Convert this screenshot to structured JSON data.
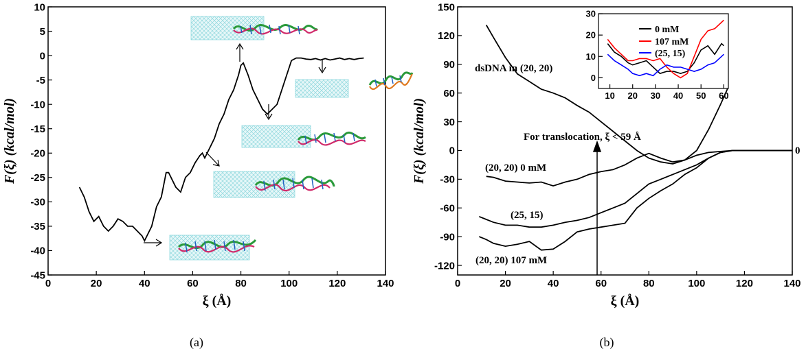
{
  "chart_data": [
    {
      "type": "line",
      "panel_label": "(a)",
      "xlabel": "ξ (Å)",
      "ylabel": "F(ξ) (kcal/mol)",
      "xlim": [
        0,
        140
      ],
      "ylim": [
        -45,
        10
      ],
      "xticks": [
        0,
        20,
        40,
        60,
        80,
        100,
        120,
        140
      ],
      "yticks": [
        10,
        5,
        0,
        -5,
        -10,
        -15,
        -20,
        -25,
        -30,
        -35,
        -40,
        -45
      ],
      "series": [
        {
          "color": "#000000",
          "x": [
            13,
            15,
            17,
            19,
            21,
            23,
            25,
            27,
            29,
            31,
            33,
            35,
            37,
            39,
            40,
            41,
            43,
            45,
            47,
            49,
            50,
            51,
            53,
            55,
            57,
            59,
            61,
            63,
            64,
            65,
            67,
            69,
            71,
            73,
            75,
            77,
            79,
            80,
            81,
            83,
            85,
            87,
            89,
            91,
            93,
            95,
            97,
            99,
            101,
            103,
            105,
            107,
            109,
            111,
            113,
            115,
            117,
            119,
            121,
            123,
            125,
            127,
            129,
            131
          ],
          "y": [
            -27,
            -29,
            -32,
            -34,
            -33,
            -35,
            -36,
            -35,
            -33.5,
            -34,
            -35,
            -35,
            -36,
            -37,
            -38,
            -37,
            -35,
            -31,
            -29,
            -24,
            -24,
            -25,
            -27,
            -28,
            -25,
            -24,
            -22,
            -20.5,
            -20,
            -21,
            -19,
            -17,
            -14,
            -12,
            -9,
            -7,
            -4,
            -2,
            -1.5,
            -4,
            -7,
            -9,
            -11,
            -12,
            -11,
            -10,
            -7,
            -4,
            -1,
            -0.5,
            -0.5,
            -0.7,
            -0.8,
            -0.6,
            -0.9,
            -0.6,
            -0.9,
            -0.7,
            -0.5,
            -0.8,
            -0.6,
            -0.8,
            -0.6,
            -0.5
          ]
        }
      ],
      "insets": [
        {
          "image": "dsDNA-nanotube-snapshot-1"
        },
        {
          "image": "dsDNA-nanotube-snapshot-2"
        },
        {
          "image": "dsDNA-nanotube-snapshot-3"
        },
        {
          "image": "dsDNA-nanotube-snapshot-4"
        },
        {
          "image": "dsDNA-nanotube-snapshot-5"
        },
        {
          "image": "dsDNA-free-snapshot"
        }
      ]
    },
    {
      "type": "line",
      "panel_label": "(b)",
      "xlabel": "ξ (Å)",
      "ylabel": "F(ξ) (kcal/mol)",
      "xlim": [
        0,
        140
      ],
      "ylim": [
        -130,
        150
      ],
      "xticks": [
        0,
        20,
        40,
        60,
        80,
        100,
        120,
        140
      ],
      "yticks": [
        150,
        120,
        90,
        60,
        30,
        0,
        -30,
        -60,
        -90,
        -120
      ],
      "annotations": {
        "dsdna": "dsDNA in (20, 20)",
        "translocation": "For translocation, ξ < 59 Å",
        "zero": "0",
        "lab_0mM": "(20, 20) 0 mM",
        "lab_2515": "(25, 15)",
        "lab_107mM": "(20, 20) 107 mM"
      },
      "series": [
        {
          "label": "dsDNA in (20, 20)",
          "color": "#000000",
          "x": [
            12,
            15,
            20,
            25,
            30,
            35,
            40,
            45,
            50,
            55,
            60,
            65,
            70,
            75,
            80,
            85,
            90,
            95,
            100,
            105,
            110,
            113
          ],
          "y": [
            131,
            118,
            97,
            80,
            72,
            64,
            60,
            55,
            47,
            40,
            30,
            20,
            10,
            0,
            -8,
            -12,
            -14,
            -10,
            0,
            22,
            48,
            65
          ]
        },
        {
          "label": "(20, 20) 0 mM",
          "color": "#000000",
          "x": [
            12,
            15,
            20,
            25,
            30,
            35,
            40,
            45,
            50,
            55,
            60,
            65,
            70,
            75,
            80,
            85,
            90,
            95,
            100,
            105,
            110,
            115,
            120,
            125,
            130,
            140
          ],
          "y": [
            -27,
            -28,
            -32,
            -33,
            -34,
            -33,
            -37,
            -33,
            -30,
            -25,
            -22,
            -20,
            -15,
            -8,
            -3,
            -8,
            -12,
            -10,
            -5,
            -2,
            -1,
            0,
            0,
            0,
            0,
            0
          ]
        },
        {
          "label": "(25, 15)",
          "color": "#000000",
          "x": [
            9,
            12,
            15,
            20,
            25,
            30,
            35,
            40,
            45,
            50,
            55,
            60,
            65,
            70,
            75,
            80,
            85,
            90,
            95,
            100,
            105,
            110,
            115,
            120,
            130,
            140
          ],
          "y": [
            -69,
            -72,
            -75,
            -78,
            -78,
            -80,
            -80,
            -78,
            -75,
            -73,
            -70,
            -65,
            -60,
            -55,
            -45,
            -35,
            -30,
            -25,
            -20,
            -15,
            -8,
            -2,
            0,
            0,
            0,
            0
          ]
        },
        {
          "label": "(20, 20) 107 mM",
          "color": "#000000",
          "x": [
            9,
            12,
            15,
            20,
            25,
            30,
            35,
            40,
            45,
            50,
            55,
            60,
            65,
            70,
            75,
            80,
            85,
            90,
            95,
            100,
            105,
            110,
            115,
            120,
            130,
            140
          ],
          "y": [
            -90,
            -93,
            -97,
            -100,
            -98,
            -95,
            -104,
            -103,
            -95,
            -85,
            -82,
            -80,
            -78,
            -76,
            -60,
            -50,
            -42,
            -35,
            -25,
            -18,
            -8,
            -2,
            0,
            0,
            0,
            0
          ]
        }
      ],
      "inset_chart": {
        "xlim": [
          5,
          62
        ],
        "ylim": [
          -5,
          30
        ],
        "xticks": [
          10,
          20,
          30,
          40,
          50,
          60
        ],
        "yticks": [
          0,
          10,
          20,
          30
        ],
        "series": [
          {
            "name": "0 mM",
            "color": "#000000",
            "x": [
              9,
              12,
              15,
              18,
              20,
              23,
              26,
              29,
              32,
              35,
              38,
              41,
              44,
              47,
              50,
              53,
              56,
              59,
              60
            ],
            "y": [
              16,
              12,
              10,
              7,
              6,
              7,
              8,
              5,
              2,
              3,
              3,
              2,
              3,
              7,
              13,
              15,
              11,
              16,
              15
            ]
          },
          {
            "name": "107 mM",
            "color": "#ff0000",
            "x": [
              9,
              12,
              15,
              18,
              20,
              23,
              26,
              29,
              32,
              35,
              38,
              41,
              44,
              47,
              50,
              53,
              56,
              59,
              60
            ],
            "y": [
              18,
              14,
              11,
              8,
              8,
              9,
              9,
              8,
              9,
              5,
              2,
              0,
              2,
              10,
              18,
              22,
              23,
              26,
              27
            ]
          },
          {
            "name": "(25, 15)",
            "color": "#0000ff",
            "x": [
              9,
              12,
              15,
              18,
              20,
              23,
              26,
              29,
              32,
              35,
              38,
              41,
              44,
              47,
              50,
              53,
              56,
              59,
              60
            ],
            "y": [
              11,
              8,
              6,
              4,
              2,
              1,
              2,
              1,
              4,
              6,
              5,
              5,
              4,
              3,
              4,
              6,
              7,
              10,
              11
            ]
          }
        ]
      }
    }
  ]
}
